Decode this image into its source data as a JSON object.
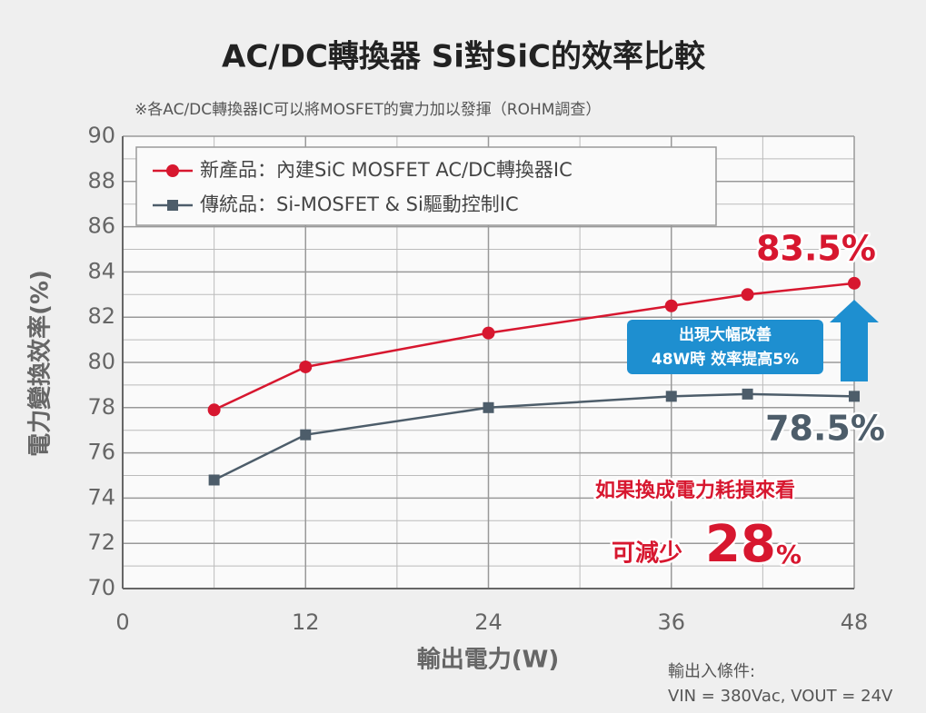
{
  "chart_data": {
    "type": "line",
    "title": "AC/DC轉換器 Si對SiC的效率比較",
    "subtitle": "※各AC/DC轉換器IC可以將MOSFET的實力加以發揮（ROHM調查）",
    "x_label": "輸出電力(W)",
    "y_label": "電力變換效率(%)",
    "x": [
      6,
      12,
      24,
      36,
      41,
      48
    ],
    "series": [
      {
        "name": "新產品：內建SiC MOSFET AC/DC轉換器IC",
        "color": "#d7172f",
        "marker": "circle",
        "values": [
          77.9,
          79.8,
          81.3,
          82.5,
          83.0,
          83.5
        ]
      },
      {
        "name": "傳統品：Si-MOSFET & Si驅動控制IC",
        "color": "#4d5d6a",
        "marker": "square",
        "values": [
          74.8,
          76.8,
          78.0,
          78.5,
          78.6,
          78.5
        ]
      }
    ],
    "xlim": [
      0,
      48
    ],
    "xticks": [
      0,
      12,
      24,
      36,
      48
    ],
    "x_minor_ticks": [
      6,
      18,
      30,
      42
    ],
    "ylim": [
      70,
      90
    ],
    "yticks": [
      70,
      72,
      74,
      76,
      78,
      80,
      82,
      84,
      86,
      88,
      90
    ],
    "y_minor_ticks": [
      71,
      73,
      75,
      77,
      79,
      81,
      83,
      85,
      87,
      89
    ],
    "grid": true,
    "legend": "top-left",
    "annotations": {
      "new_value": "83.5%",
      "old_value": "78.5%",
      "callout": [
        "出現大幅改善",
        "48W時 效率提高5%"
      ],
      "loss_line": "如果換成電力耗損來看",
      "loss_prefix": "可減少",
      "loss_number": "28",
      "loss_unit": "%",
      "conditions": [
        "輸出入條件:",
        "VIN = 380Vac, VOUT = 24V"
      ]
    }
  }
}
